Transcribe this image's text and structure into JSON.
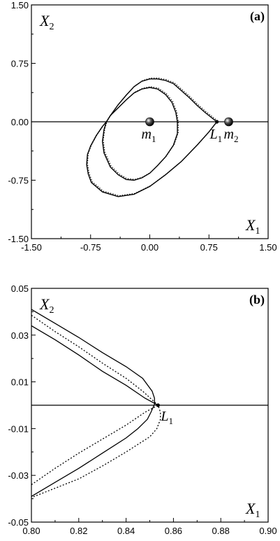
{
  "chart_data": [
    {
      "type": "line",
      "panel_label": "(a)",
      "x_label": {
        "main": "X",
        "sub": "1"
      },
      "y_label": {
        "main": "X",
        "sub": "2"
      },
      "xlim": [
        -1.5,
        1.5
      ],
      "ylim": [
        -1.5,
        1.5
      ],
      "x_ticks": [
        "-1.50",
        "-0.75",
        "0.00",
        "0.75",
        "1.50"
      ],
      "x_tick_values": [
        -1.5,
        -0.75,
        0,
        0.75,
        1.5
      ],
      "y_ticks": [
        "1.50",
        "0.75",
        "0.00",
        "-0.75",
        "-1.50"
      ],
      "y_tick_values": [
        1.5,
        0.75,
        0,
        -0.75,
        -1.5
      ],
      "grid": false,
      "reference_line": {
        "y": 0
      },
      "annotations": [
        {
          "main": "m",
          "sub": "1",
          "x": 0.0,
          "y": 0.0
        },
        {
          "main": "m",
          "sub": "2",
          "x": 1.0,
          "y": 0.0
        },
        {
          "main": "L",
          "sub": "1",
          "x": 0.85,
          "y": 0.0
        }
      ],
      "orbit_loop_top": [
        [
          0.85,
          0
        ],
        [
          0.8,
          0.04
        ],
        [
          0.7,
          0.12
        ],
        [
          0.6,
          0.21
        ],
        [
          0.5,
          0.31
        ],
        [
          0.4,
          0.4
        ],
        [
          0.3,
          0.49
        ],
        [
          0.2,
          0.53
        ],
        [
          0.1,
          0.55
        ],
        [
          0,
          0.55
        ],
        [
          -0.1,
          0.52
        ],
        [
          -0.2,
          0.45
        ],
        [
          -0.3,
          0.34
        ],
        [
          -0.4,
          0.22
        ],
        [
          -0.5,
          0.08
        ],
        [
          -0.55,
          0
        ],
        [
          -0.58,
          -0.1
        ],
        [
          -0.6,
          -0.25
        ],
        [
          -0.58,
          -0.4
        ],
        [
          -0.5,
          -0.58
        ],
        [
          -0.4,
          -0.68
        ],
        [
          -0.3,
          -0.74
        ],
        [
          -0.2,
          -0.75
        ],
        [
          -0.1,
          -0.72
        ],
        [
          0,
          -0.66
        ],
        [
          0.1,
          -0.56
        ],
        [
          0.2,
          -0.45
        ],
        [
          0.3,
          -0.3
        ],
        [
          0.35,
          -0.15
        ],
        [
          0.35,
          0
        ],
        [
          0.33,
          0.12
        ],
        [
          0.28,
          0.25
        ],
        [
          0.2,
          0.35
        ],
        [
          0.1,
          0.42
        ],
        [
          0,
          0.44
        ],
        [
          -0.1,
          0.42
        ],
        [
          -0.2,
          0.37
        ],
        [
          -0.3,
          0.28
        ],
        [
          -0.4,
          0.18
        ],
        [
          -0.5,
          0.08
        ],
        [
          -0.55,
          0
        ],
        [
          -0.6,
          -0.06
        ],
        [
          -0.68,
          -0.18
        ],
        [
          -0.75,
          -0.31
        ],
        [
          -0.79,
          -0.42
        ],
        [
          -0.8,
          -0.55
        ],
        [
          -0.78,
          -0.67
        ],
        [
          -0.74,
          -0.78
        ],
        [
          -0.6,
          -0.9
        ],
        [
          -0.4,
          -0.96
        ],
        [
          -0.2,
          -0.93
        ],
        [
          0,
          -0.83
        ],
        [
          0.2,
          -0.68
        ],
        [
          0.4,
          -0.51
        ],
        [
          0.6,
          -0.3
        ],
        [
          0.75,
          -0.13
        ],
        [
          0.85,
          0
        ]
      ],
      "orbit_note": "single closed curve; solid and dotted variants nearly coincide"
    },
    {
      "type": "line",
      "panel_label": "(b)",
      "x_label": {
        "main": "X",
        "sub": "1"
      },
      "y_label": {
        "main": "X",
        "sub": "2"
      },
      "xlim": [
        0.8,
        0.9
      ],
      "ylim": [
        -0.05,
        0.05
      ],
      "x_ticks": [
        "0.80",
        "0.82",
        "0.84",
        "0.86",
        "0.88",
        "0.90"
      ],
      "x_tick_values": [
        0.8,
        0.82,
        0.84,
        0.86,
        0.88,
        0.9
      ],
      "y_ticks": [
        "0.05",
        "0.03",
        "0.01",
        "-0.01",
        "-0.03",
        "-0.05"
      ],
      "y_tick_values": [
        0.05,
        0.03,
        0.01,
        -0.01,
        -0.03,
        -0.05
      ],
      "grid": false,
      "reference_line": {
        "y": 0
      },
      "annotations": [
        {
          "main": "L",
          "sub": "1",
          "x": 0.8535,
          "y": 0.0
        }
      ],
      "series": [
        {
          "style": "solid",
          "values": [
            [
              0.8,
              0.041
            ],
            [
              0.81,
              0.035
            ],
            [
              0.82,
              0.029
            ],
            [
              0.83,
              0.0225
            ],
            [
              0.84,
              0.0165
            ],
            [
              0.847,
              0.0115
            ],
            [
              0.851,
              0.006
            ],
            [
              0.852,
              0.003
            ],
            [
              0.852,
              0.0005
            ],
            [
              0.8505,
              -0.003
            ],
            [
              0.849,
              -0.006
            ],
            [
              0.845,
              -0.01
            ],
            [
              0.84,
              -0.014
            ],
            [
              0.83,
              -0.0205
            ],
            [
              0.82,
              -0.027
            ],
            [
              0.81,
              -0.033
            ],
            [
              0.8,
              -0.039
            ]
          ]
        },
        {
          "style": "solid",
          "values": [
            [
              0.8,
              0.034
            ],
            [
              0.81,
              0.028
            ],
            [
              0.82,
              0.0215
            ],
            [
              0.83,
              0.0145
            ],
            [
              0.84,
              0.0085
            ],
            [
              0.848,
              0.003
            ],
            [
              0.8535,
              0.0
            ]
          ]
        },
        {
          "style": "dotted",
          "values": [
            [
              0.8,
              0.0385
            ],
            [
              0.81,
              0.0315
            ],
            [
              0.82,
              0.025
            ],
            [
              0.83,
              0.018
            ],
            [
              0.84,
              0.0115
            ],
            [
              0.847,
              0.006
            ],
            [
              0.8535,
              0.0
            ],
            [
              0.8545,
              -0.003
            ],
            [
              0.8545,
              -0.006
            ],
            [
              0.853,
              -0.01
            ],
            [
              0.85,
              -0.0135
            ],
            [
              0.84,
              -0.02
            ],
            [
              0.83,
              -0.026
            ],
            [
              0.82,
              -0.0315
            ],
            [
              0.81,
              -0.0355
            ],
            [
              0.8,
              -0.0395
            ]
          ]
        },
        {
          "style": "dotted",
          "values": [
            [
              0.8,
              -0.034
            ],
            [
              0.81,
              -0.027
            ],
            [
              0.82,
              -0.0205
            ],
            [
              0.83,
              -0.0145
            ],
            [
              0.84,
              -0.0085
            ],
            [
              0.848,
              -0.003
            ],
            [
              0.8535,
              0.0
            ]
          ]
        }
      ]
    }
  ]
}
